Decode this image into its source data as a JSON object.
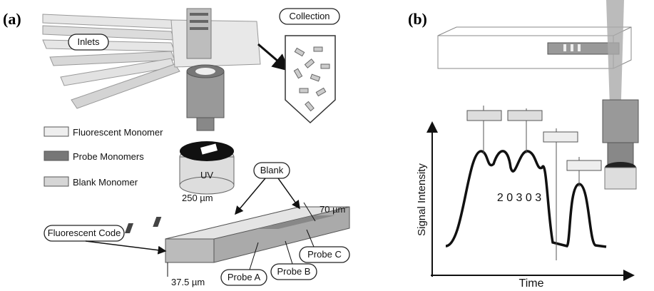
{
  "panel_a": {
    "label": "(a)",
    "inlets": "Inlets",
    "collection": "Collection",
    "legend": [
      "Fluorescent Monomer",
      "Probe Monomers",
      "Blank Monomer"
    ],
    "uv": "UV",
    "blank": "Blank",
    "length": "250 µm",
    "width": "70 µm",
    "fluorescent_code": "Fluorescent Code",
    "probe_a": "Probe A",
    "probe_b": "Probe B",
    "probe_c": "Probe C",
    "height": "37.5 µm"
  },
  "panel_b": {
    "label": "(b)",
    "y_axis": "Signal Intensity",
    "x_axis": "Time",
    "code": "2 0 3 0 3"
  }
}
